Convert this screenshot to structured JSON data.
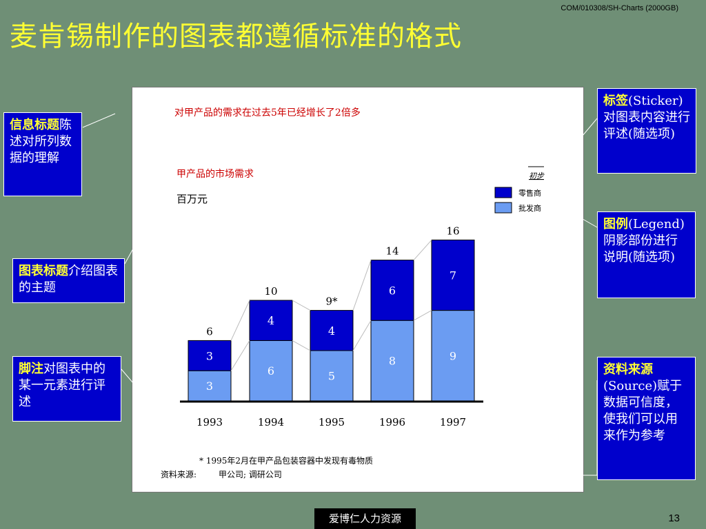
{
  "slide": {
    "code": "COM/010308/SH-Charts (2000GB)",
    "title": "麦肯锡制作的图表都遵循标准的格式",
    "footer_text": "爱博仁人力资源",
    "page_number": "13"
  },
  "callouts": {
    "message_title": {
      "highlight": "信息标题",
      "text": "陈述对所列数据的理解"
    },
    "chart_title": {
      "highlight": "图表标题",
      "text": "介绍图表的主题"
    },
    "footnote": {
      "highlight": "脚注",
      "text": "对图表中的某一元素进行评述"
    },
    "sticker": {
      "highlight": "标签",
      "text": "(Sticker)对图表内容进行评述(随选项)"
    },
    "legend": {
      "highlight": "图例",
      "text": "(Legend)阴影部份进行说明(随选项)"
    },
    "source": {
      "highlight": "资料来源",
      "text": "(Source)赋于数据可信度，使我们可以用来作为参考"
    }
  },
  "chart_data": {
    "type": "bar",
    "stacked": true,
    "message_title": "对甲产品的需求在过去5年已经增长了2倍多",
    "title": "甲产品的市场需求",
    "unit": "百万元",
    "sticker": "初步",
    "categories": [
      "1993",
      "1994",
      "1995",
      "1996",
      "1997"
    ],
    "series": [
      {
        "name": "批发商",
        "color": "#6b9cf2",
        "values": [
          3,
          6,
          5,
          8,
          9
        ]
      },
      {
        "name": "零售商",
        "color": "#0000cc",
        "values": [
          3,
          4,
          4,
          6,
          7
        ]
      }
    ],
    "totals": [
      "6",
      "10",
      "9*",
      "14",
      "16"
    ],
    "ylim": [
      0,
      16
    ],
    "legend_position": "top-right",
    "footnote": "*   1995年2月在甲产品包装容器中发现有毒物质",
    "source_label": "资料来源:",
    "source_text": "甲公司;  调研公司"
  },
  "colors": {
    "background": "#6f8f76",
    "title": "#ffff33",
    "callout_bg": "#0000cc"
  }
}
